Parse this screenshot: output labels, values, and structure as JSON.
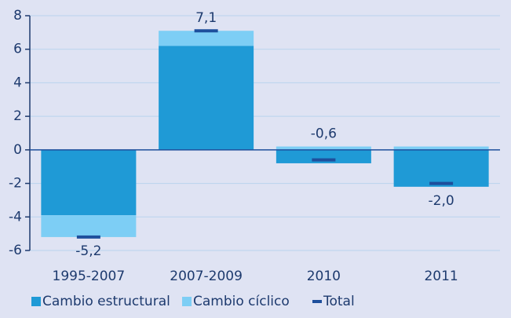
{
  "chart_data": {
    "type": "bar",
    "stacked": true,
    "categories": [
      "1995-2007",
      "2007-2009",
      "2010",
      "2011"
    ],
    "series": [
      {
        "name": "Cambio estructural",
        "color": "#1f9ad6",
        "values": [
          -3.9,
          6.2,
          -0.8,
          -2.2
        ]
      },
      {
        "name": "Cambio cíclico",
        "color": "#7dcef5",
        "values": [
          -1.3,
          0.9,
          0.2,
          0.2
        ]
      },
      {
        "name": "Total",
        "color": "#1e4f9c",
        "type": "marker",
        "values": [
          -5.2,
          7.1,
          -0.6,
          -2.0
        ],
        "value_labels": [
          "-5,2",
          "7,1",
          "-0,6",
          "-2,0"
        ]
      }
    ],
    "ylim": [
      -6,
      8
    ],
    "yticks": [
      -6,
      -4,
      -2,
      0,
      2,
      4,
      6,
      8
    ],
    "grid": true,
    "legend": "bottom"
  }
}
